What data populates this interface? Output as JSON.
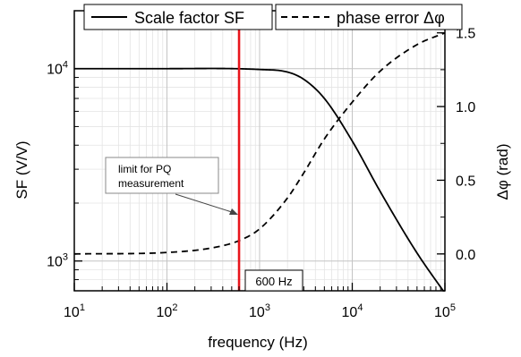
{
  "chart_data": {
    "type": "line",
    "xlabel": "frequency (Hz)",
    "ylabel_left": "SF (V/V)",
    "ylabel_right": "Δφ (rad)",
    "x_scale": "log",
    "y_left_scale": "log",
    "y_right_scale": "linear",
    "xlim": [
      10,
      100000
    ],
    "ylim_left": [
      700,
      20000
    ],
    "ylim_right": [
      -0.25,
      1.65
    ],
    "x_ticks": [
      {
        "base": "10",
        "exp": "1",
        "value": 10
      },
      {
        "base": "10",
        "exp": "2",
        "value": 100
      },
      {
        "base": "10",
        "exp": "3",
        "value": 1000
      },
      {
        "base": "10",
        "exp": "4",
        "value": 10000
      },
      {
        "base": "10",
        "exp": "5",
        "value": 100000
      }
    ],
    "y_left_ticks": [
      {
        "base": "10",
        "exp": "3",
        "value": 1000
      },
      {
        "base": "10",
        "exp": "4",
        "value": 10000
      }
    ],
    "y_right_ticks": [
      {
        "label": "0.0",
        "value": 0.0
      },
      {
        "label": "0.5",
        "value": 0.5
      },
      {
        "label": "1.0",
        "value": 1.0
      },
      {
        "label": "1.5",
        "value": 1.5
      }
    ],
    "grid": true,
    "legend_position": "top",
    "series": [
      {
        "name": "Scale factor SF",
        "axis": "left",
        "style": "solid",
        "color": "#000000",
        "x": [
          10,
          100,
          1000,
          2000,
          3000,
          5000,
          10000,
          20000,
          50000,
          100000
        ],
        "y": [
          10000,
          10000,
          9900,
          9600,
          8800,
          7000,
          4200,
          2300,
          1100,
          680
        ]
      },
      {
        "name": "phase error Δφ",
        "axis": "right",
        "style": "dashed",
        "color": "#000000",
        "x": [
          10,
          100,
          300,
          600,
          1000,
          2000,
          3000,
          5000,
          10000,
          20000,
          50000,
          100000
        ],
        "y": [
          0.0,
          0.01,
          0.04,
          0.09,
          0.17,
          0.38,
          0.55,
          0.78,
          1.03,
          1.24,
          1.42,
          1.5
        ]
      }
    ],
    "marker_line": {
      "x": 600,
      "color": "#e8141b",
      "label": "600 Hz"
    },
    "annotation": {
      "text_line1": "limit for PQ",
      "text_line2": "measurement"
    }
  }
}
